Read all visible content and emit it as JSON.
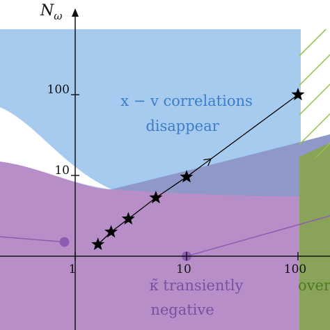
{
  "chart_data": {
    "type": "scatter",
    "title": "",
    "xlabel": "",
    "ylabel": "N_ω",
    "x_scale": "log",
    "y_scale": "log",
    "xlim": [
      0.38,
      300
    ],
    "ylim": [
      0.3,
      2000
    ],
    "x_ticks": [
      1,
      10,
      100
    ],
    "x_tick_labels": [
      "1",
      "10",
      "100"
    ],
    "y_ticks": [
      10,
      100
    ],
    "y_tick_labels": [
      "10",
      "100"
    ],
    "grid": false,
    "legend": "none",
    "series": [
      {
        "marker": "star",
        "color": "#000000",
        "connected": true,
        "points": [
          {
            "x": 1.6,
            "y": 1.4
          },
          {
            "x": 2.1,
            "y": 2.0
          },
          {
            "x": 3.0,
            "y": 2.9
          },
          {
            "x": 5.3,
            "y": 5.3
          },
          {
            "x": 10.0,
            "y": 9.6
          },
          {
            "x": 100.0,
            "y": 100.0
          }
        ]
      }
    ],
    "regions": [
      {
        "label": "x − v  correlations",
        "label2": "disappear",
        "color": "#a6cbee"
      },
      {
        "label": "κ̃ transiently",
        "label2": "negative",
        "color": "#b186c3"
      },
      {
        "label": "over",
        "color": "#8aa35a"
      }
    ],
    "annotations": {
      "purple_points": [
        {
          "x": 0.8,
          "y": 1.5
        },
        {
          "x": 10.0,
          "y": 0.5
        }
      ]
    },
    "colors": {
      "blue_region": "#a6cbee",
      "purple_region": "#b186c3",
      "overlap_region": "#8f9bc8",
      "green_region": "#8aa35a",
      "hatch": "#92c44a",
      "purple_text": "#7a4fa0",
      "blue_text": "#3d7cc9",
      "green_text": "#4d7a1e",
      "marker_purple": "#8e5cb0"
    }
  }
}
